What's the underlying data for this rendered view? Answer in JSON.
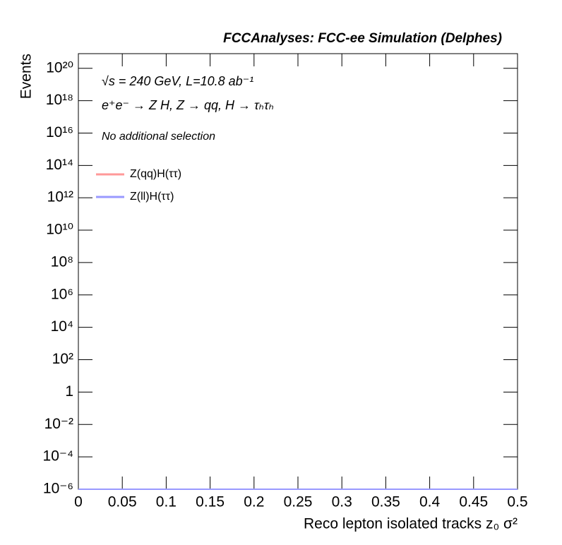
{
  "chart_data": {
    "type": "line",
    "title": "FCCAnalyses: FCC-ee Simulation (Delphes)",
    "x_label": "Reco lepton isolated tracks z₀ σ²",
    "y_label": "Events",
    "annotations": [
      "√s = 240 GeV, L=10.8 ab⁻¹",
      "e⁺e⁻ → Z H, Z → qq, H → τₕτₕ",
      "No additional selection"
    ],
    "x": [
      0,
      0.5
    ],
    "series": [
      {
        "name": "Z(qq)H(ττ)",
        "color": "#ff9999",
        "values": [
          1e-06,
          1e-06
        ]
      },
      {
        "name": "Z(ll)H(ττ)",
        "color": "#9999ff",
        "values": [
          1e-06,
          1e-06
        ]
      }
    ],
    "xlim": [
      0,
      0.5
    ],
    "xticks": [
      0,
      0.05,
      0.1,
      0.15,
      0.2,
      0.25,
      0.3,
      0.35,
      0.4,
      0.45,
      0.5
    ],
    "ylim": [
      1e-06,
      8e+20
    ],
    "log_y": true,
    "yticks": [
      {
        "value": 1e-06,
        "label": "10⁻⁶"
      },
      {
        "value": 0.0001,
        "label": "10⁻⁴"
      },
      {
        "value": 0.01,
        "label": "10⁻²"
      },
      1,
      {
        "value": 100,
        "label": "10²"
      },
      {
        "value": 10000.0,
        "label": "10⁴"
      },
      {
        "value": 1000000.0,
        "label": "10⁶"
      },
      {
        "value": 100000000.0,
        "label": "10⁸"
      },
      {
        "value": 10000000000.0,
        "label": "10¹⁰"
      },
      {
        "value": 1000000000000.0,
        "label": "10¹²"
      },
      {
        "value": 100000000000000.0,
        "label": "10¹⁴"
      },
      {
        "value": 1e+16,
        "label": "10¹⁶"
      },
      {
        "value": 1e+18,
        "label": "10¹⁸"
      },
      {
        "value": 1e+20,
        "label": "10²⁰"
      }
    ],
    "legend_position": "upper-left"
  }
}
